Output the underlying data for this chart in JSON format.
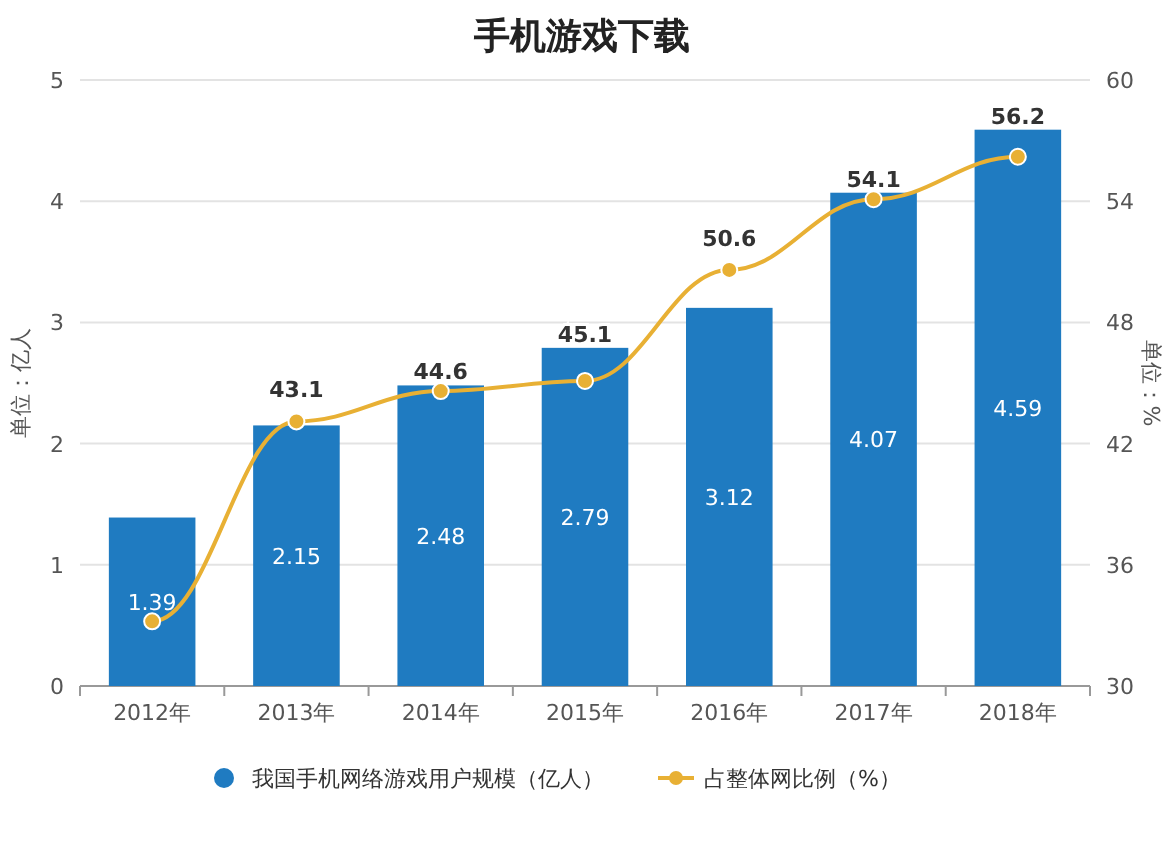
{
  "chart_data": {
    "type": "bar",
    "title": "手机游戏下载",
    "categories": [
      "2012年",
      "2013年",
      "2014年",
      "2015年",
      "2016年",
      "2017年",
      "2018年"
    ],
    "ylabel": "单位：亿人",
    "y2label": "单位：%",
    "ylim": [
      0,
      5
    ],
    "yticks": [
      0,
      1,
      2,
      3,
      4,
      5
    ],
    "y2lim": [
      30,
      60
    ],
    "y2ticks": [
      30,
      36,
      42,
      48,
      54,
      60
    ],
    "grid": "y",
    "legend": "bottom",
    "series": [
      {
        "name": "我国手机网络游戏用户规模（亿人）",
        "color": "#1f7bc1",
        "values": [
          1.39,
          2.15,
          2.48,
          2.79,
          3.12,
          4.07,
          4.59
        ],
        "value_labels": [
          "1.39",
          "2.15",
          "2.48",
          "2.79",
          "3.12",
          "4.07",
          "4.59"
        ]
      },
      {
        "name": "占整体网比例（%）",
        "type": "line",
        "axis": "y2",
        "color": "#e8b034",
        "marker": "circle",
        "values": [
          33.2,
          43.1,
          44.6,
          45.1,
          50.6,
          54.1,
          56.2
        ],
        "value_labels": [
          null,
          "43.1",
          "44.6",
          "45.1",
          "50.6",
          "54.1",
          "56.2"
        ]
      }
    ]
  }
}
